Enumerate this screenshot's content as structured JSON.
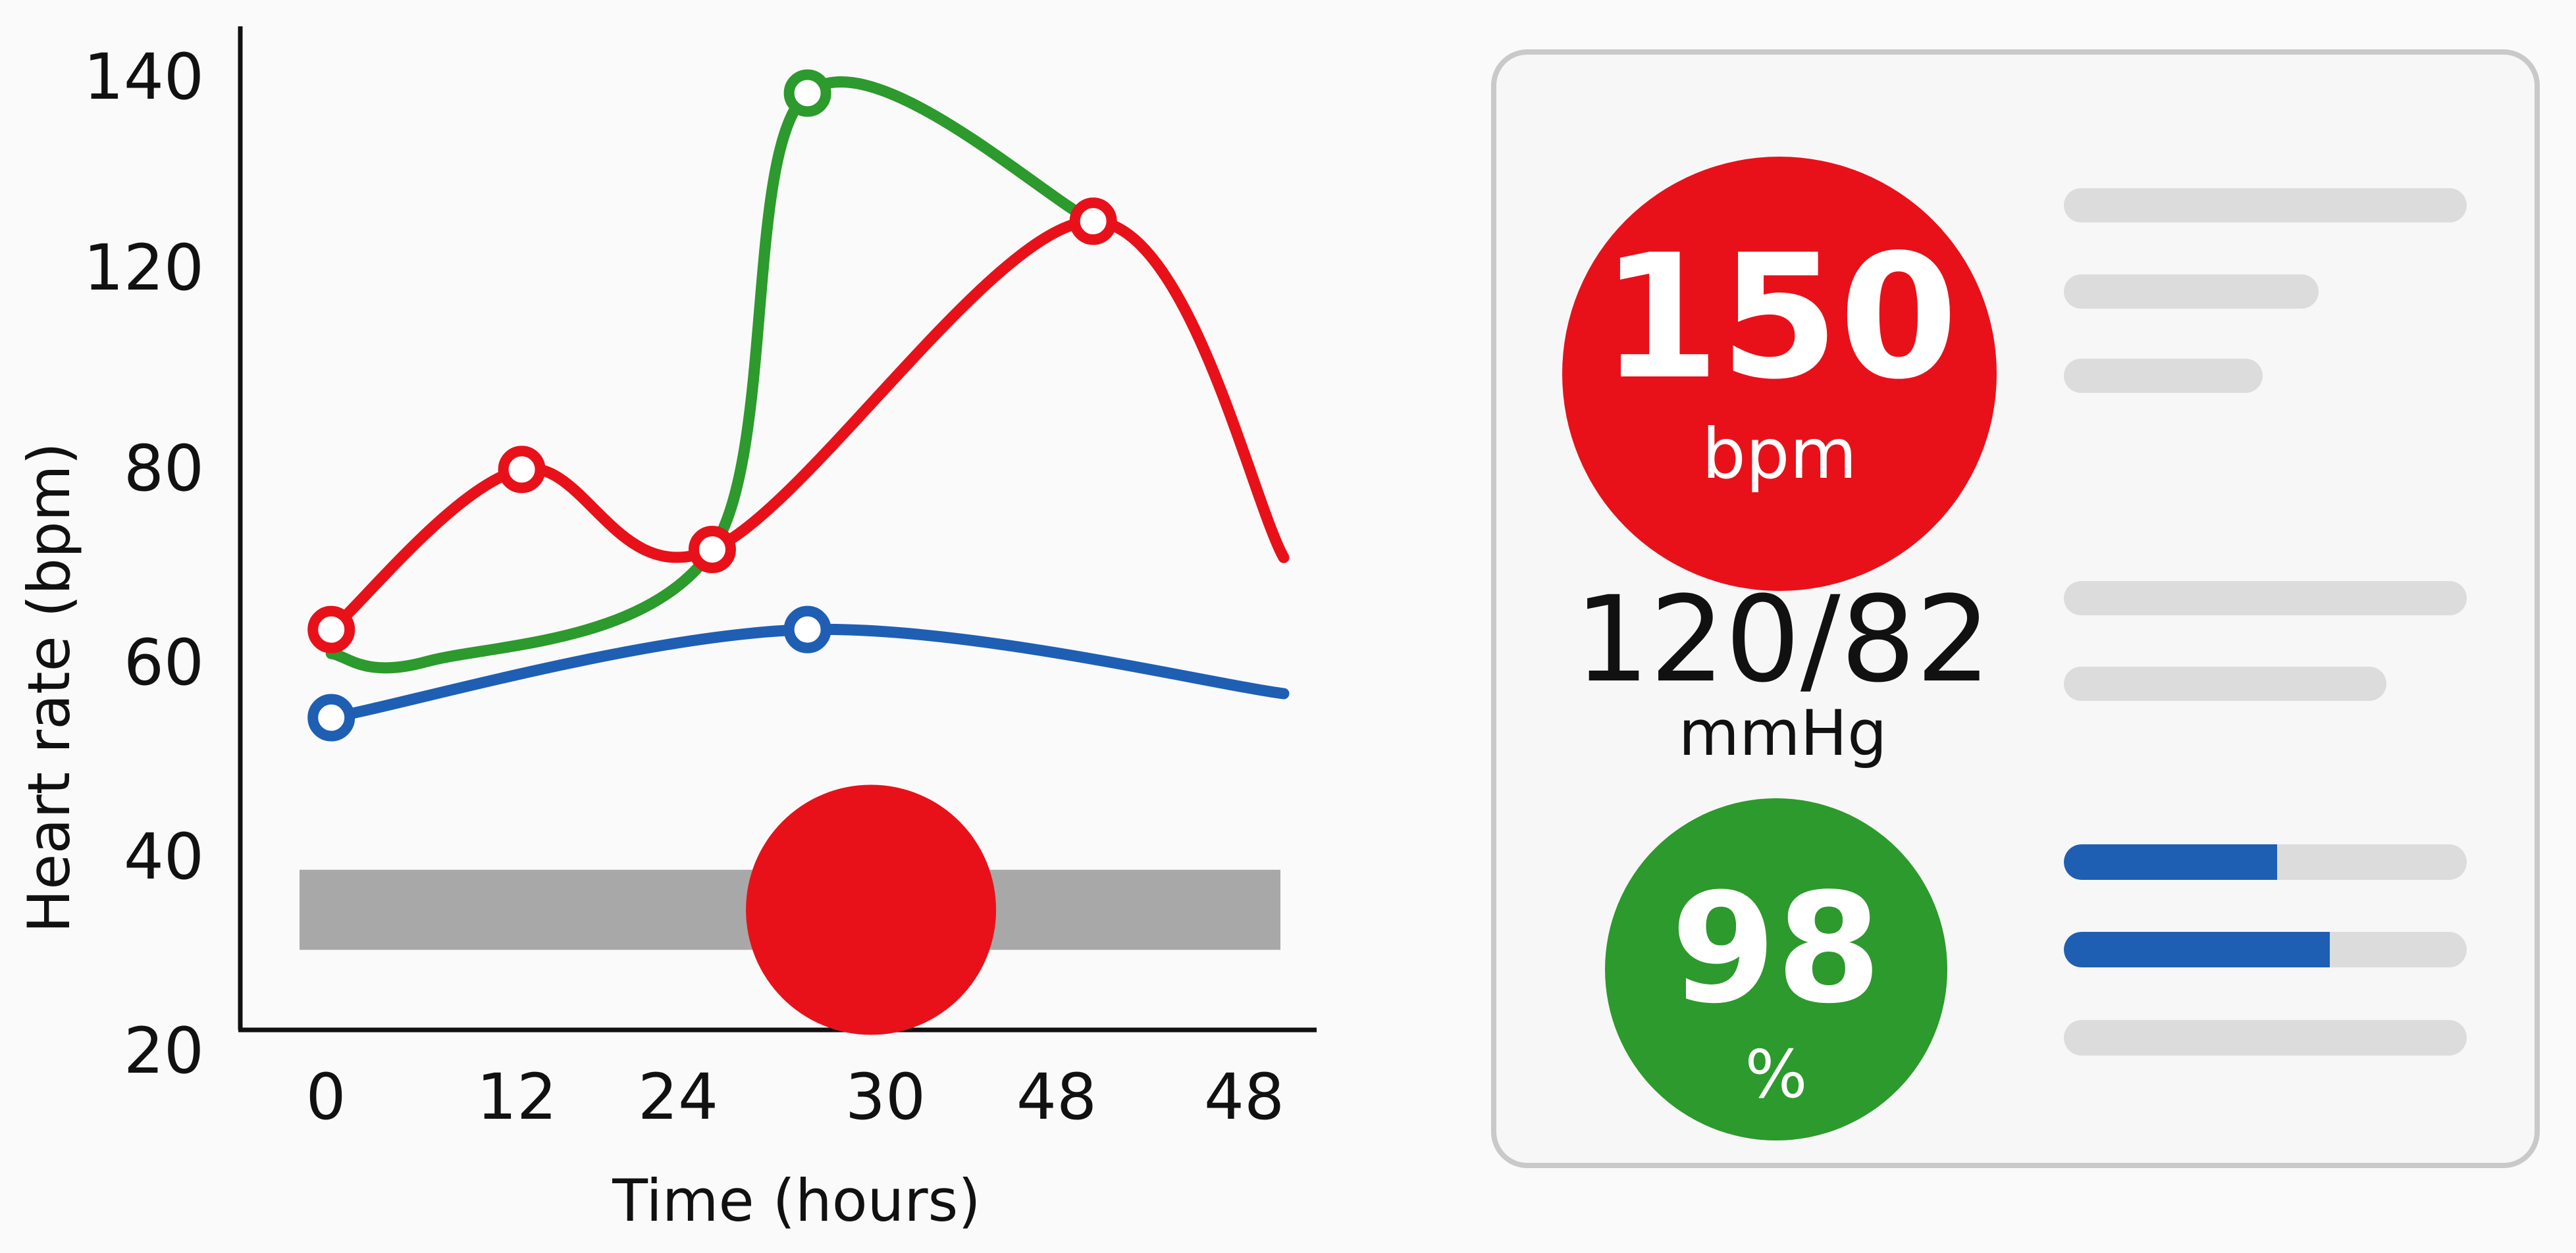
{
  "chart_data": {
    "type": "line",
    "xlabel": "Time (hours)",
    "ylabel": "Heart rate (bpm)",
    "x_tick_labels": [
      "0",
      "12",
      "24",
      "30",
      "48",
      "48"
    ],
    "y_tick_labels": [
      "140",
      "120",
      "80",
      "60",
      "40",
      "20"
    ],
    "y_tick_values": [
      140,
      120,
      80,
      60,
      40,
      20
    ],
    "series": [
      {
        "color": "#e8111a",
        "points": [
          [
            0,
            70
          ],
          [
            12,
            90
          ],
          [
            24,
            80
          ],
          [
            48,
            121
          ],
          [
            60,
            79
          ]
        ],
        "markers": [
          [
            0,
            70
          ],
          [
            12,
            90
          ],
          [
            24,
            80
          ],
          [
            48,
            121
          ]
        ]
      },
      {
        "color": "#2c9a2c",
        "points": [
          [
            0,
            67
          ],
          [
            6,
            66
          ],
          [
            24,
            80
          ],
          [
            30,
            137
          ],
          [
            48,
            121
          ]
        ],
        "markers": [
          [
            30,
            137
          ]
        ]
      },
      {
        "color": "#1e5fb4",
        "points": [
          [
            0,
            59
          ],
          [
            30,
            70
          ],
          [
            60,
            62
          ]
        ],
        "markers": [
          [
            0,
            59
          ],
          [
            30,
            70
          ]
        ]
      }
    ],
    "range_band": {
      "y_from": 30,
      "y_to": 40,
      "color": "#a8a8a8"
    },
    "indicator_dot": {
      "x": 34,
      "y": 35,
      "color": "#e8111a"
    }
  },
  "vitals": {
    "heart_rate": {
      "value": "150",
      "unit": "bpm",
      "color": "#e8111a"
    },
    "blood_pressure": {
      "value": "120/82",
      "unit": "mmHg"
    },
    "spo2": {
      "value": "98",
      "unit": "%",
      "color": "#2c9a2c"
    },
    "spo2_bars": [
      {
        "fill": 0.53
      },
      {
        "fill": 0.66
      },
      {
        "fill": 0
      }
    ]
  }
}
